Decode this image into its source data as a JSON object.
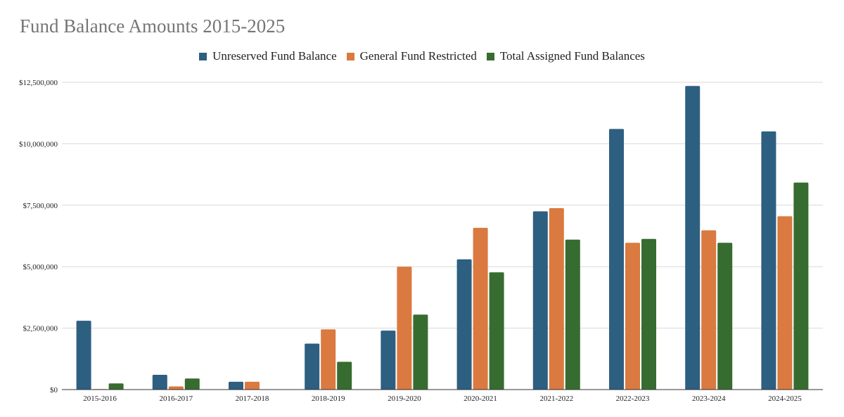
{
  "chart_data": {
    "type": "bar",
    "title": "Fund Balance Amounts 2015-2025",
    "xlabel": "",
    "ylabel": "",
    "categories": [
      "2015-2016",
      "2016-2017",
      "2017-2018",
      "2018-2019",
      "2019-2020",
      "2020-2021",
      "2021-2022",
      "2022-2023",
      "2023-2024",
      "2024-2025"
    ],
    "series": [
      {
        "name": "Unreserved Fund Balance",
        "color": "#2d5f81",
        "values": [
          2800000,
          600000,
          320000,
          1870000,
          2400000,
          5300000,
          7250000,
          10600000,
          12350000,
          10500000
        ]
      },
      {
        "name": "General Fund Restricted",
        "color": "#da7940",
        "values": [
          20000,
          130000,
          320000,
          2450000,
          5000000,
          6580000,
          7380000,
          5970000,
          6480000,
          7050000
        ]
      },
      {
        "name": "Total Assigned Fund Balances",
        "color": "#376c30",
        "values": [
          250000,
          450000,
          0,
          1130000,
          3050000,
          4770000,
          6100000,
          6130000,
          5970000,
          8420000
        ]
      }
    ],
    "ylim": [
      0,
      12500000
    ],
    "yticks": [
      0,
      2500000,
      5000000,
      7500000,
      10000000,
      12500000
    ],
    "ytick_labels": [
      "$0",
      "$2,500,000",
      "$5,000,000",
      "$7,500,000",
      "$10,000,000",
      "$12,500,000"
    ],
    "grid": true,
    "legend_position": "top-center"
  }
}
